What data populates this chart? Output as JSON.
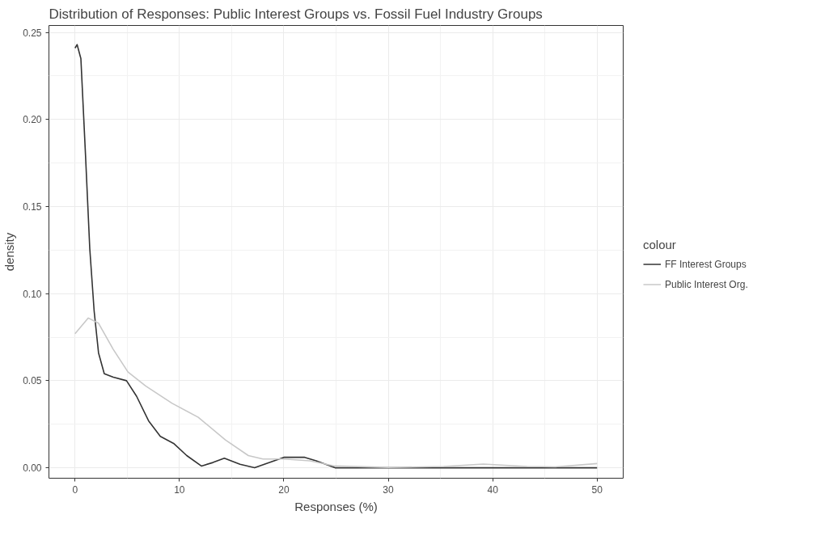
{
  "chart_data": {
    "type": "line",
    "title": "Distribution of Responses: Public Interest Groups vs. Fossil Fuel Industry Groups",
    "xlabel": "Responses (%)",
    "ylabel": "density",
    "legend_title": "colour",
    "xlim": [
      -2.5,
      52.5
    ],
    "ylim": [
      -0.006,
      0.254
    ],
    "xticks": [
      0,
      10,
      20,
      30,
      40,
      50
    ],
    "yticks": [
      {
        "value": 0,
        "label": "0.00"
      },
      {
        "value": 0.05,
        "label": "0.05"
      },
      {
        "value": 0.1,
        "label": "0.10"
      },
      {
        "value": 0.15,
        "label": "0.15"
      },
      {
        "value": 0.2,
        "label": "0.20"
      },
      {
        "value": 0.25,
        "label": "0.25"
      }
    ],
    "grid": true,
    "legend": "right",
    "marker": "none",
    "line_style": "solid",
    "series": [
      {
        "name": "FF Interest Groups",
        "color": "#333333",
        "x": [
          0,
          0.2,
          0.56,
          1,
          1.41,
          1.83,
          2.25,
          2.8,
          3.66,
          4.93,
          5.9,
          7.04,
          8.17,
          9.44,
          10.7,
          12.1,
          13.2,
          14.3,
          15.8,
          17.2,
          20,
          22,
          23.1,
          24.9,
          30,
          40,
          50
        ],
        "values": [
          0.241,
          0.243,
          0.235,
          0.18,
          0.126,
          0.09,
          0.066,
          0.054,
          0.052,
          0.05,
          0.041,
          0.027,
          0.018,
          0.014,
          0.007,
          0.001,
          0.003,
          0.0055,
          0.002,
          0,
          0.006,
          0.006,
          0.004,
          0,
          0,
          0,
          0
        ]
      },
      {
        "name": "Public Interest Org.",
        "color": "#c8c8c8",
        "x": [
          0,
          1.27,
          2.25,
          3.66,
          5.07,
          6.76,
          9.3,
          11.8,
          14.4,
          16.6,
          18,
          20,
          22.5,
          24.9,
          30,
          35.3,
          39.1,
          43.3,
          46,
          50
        ],
        "values": [
          0.077,
          0.086,
          0.083,
          0.068,
          0.055,
          0.047,
          0.037,
          0.029,
          0.016,
          0.007,
          0.005,
          0.005,
          0.004,
          0.001,
          0.0002,
          0.0007,
          0.0021,
          0.0007,
          0.0005,
          0.0024
        ]
      }
    ]
  }
}
